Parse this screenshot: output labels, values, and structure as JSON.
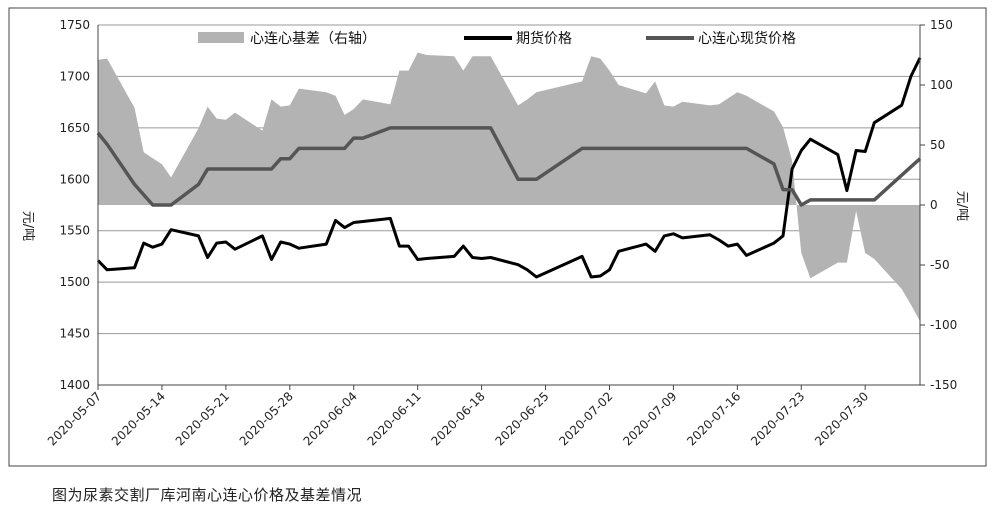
{
  "caption": "图为尿素交割厂库河南心连心价格及基差情况",
  "chart_data": {
    "type": "line",
    "left_axis": {
      "label": "元/吨",
      "min": 1400,
      "max": 1750,
      "ticks": [
        1400,
        1450,
        1500,
        1550,
        1600,
        1650,
        1700,
        1750
      ]
    },
    "right_axis": {
      "label": "元/吨",
      "min": -150,
      "max": 150,
      "ticks": [
        -150,
        -100,
        -50,
        0,
        50,
        100,
        150
      ]
    },
    "x_tick_labels": [
      "2020-05-07",
      "2020-05-14",
      "2020-05-21",
      "2020-05-28",
      "2020-06-04",
      "2020-06-11",
      "2020-06-18",
      "2020-06-25",
      "2020-07-02",
      "2020-07-09",
      "2020-07-16",
      "2020-07-23",
      "2020-07-30"
    ],
    "x_range": [
      "2020-05-07",
      "2020-08-05"
    ],
    "legend_position": "top",
    "series": [
      {
        "name": "心连心基差（右轴）",
        "type": "area",
        "axis": "right",
        "color": "#b3b3b3",
        "points": [
          [
            "2020-05-07",
            121
          ],
          [
            "2020-05-08",
            122
          ],
          [
            "2020-05-11",
            81
          ],
          [
            "2020-05-12",
            44
          ],
          [
            "2020-05-13",
            39
          ],
          [
            "2020-05-14",
            34
          ],
          [
            "2020-05-15",
            23
          ],
          [
            "2020-05-18",
            64
          ],
          [
            "2020-05-19",
            82
          ],
          [
            "2020-05-20",
            72
          ],
          [
            "2020-05-21",
            71
          ],
          [
            "2020-05-22",
            77
          ],
          [
            "2020-05-25",
            62
          ],
          [
            "2020-05-26",
            88
          ],
          [
            "2020-05-27",
            82
          ],
          [
            "2020-05-28",
            83
          ],
          [
            "2020-05-29",
            97
          ],
          [
            "2020-06-01",
            94
          ],
          [
            "2020-06-02",
            91
          ],
          [
            "2020-06-03",
            75
          ],
          [
            "2020-06-04",
            80
          ],
          [
            "2020-06-05",
            88
          ],
          [
            "2020-06-08",
            84
          ],
          [
            "2020-06-09",
            112
          ],
          [
            "2020-06-10",
            112
          ],
          [
            "2020-06-11",
            127
          ],
          [
            "2020-06-12",
            125
          ],
          [
            "2020-06-15",
            124
          ],
          [
            "2020-06-16",
            112
          ],
          [
            "2020-06-17",
            124
          ],
          [
            "2020-06-18",
            124
          ],
          [
            "2020-06-19",
            124
          ],
          [
            "2020-06-22",
            83
          ],
          [
            "2020-06-23",
            88
          ],
          [
            "2020-06-24",
            94
          ],
          [
            "2020-06-29",
            103
          ],
          [
            "2020-06-30",
            124
          ],
          [
            "2020-07-01",
            122
          ],
          [
            "2020-07-02",
            112
          ],
          [
            "2020-07-03",
            100
          ],
          [
            "2020-07-06",
            93
          ],
          [
            "2020-07-07",
            103
          ],
          [
            "2020-07-08",
            83
          ],
          [
            "2020-07-09",
            82
          ],
          [
            "2020-07-10",
            86
          ],
          [
            "2020-07-13",
            83
          ],
          [
            "2020-07-14",
            84
          ],
          [
            "2020-07-15",
            89
          ],
          [
            "2020-07-16",
            94
          ],
          [
            "2020-07-17",
            91
          ],
          [
            "2020-07-20",
            78
          ],
          [
            "2020-07-21",
            65
          ],
          [
            "2020-07-22",
            37
          ],
          [
            "2020-07-23",
            -40
          ],
          [
            "2020-07-24",
            -61
          ],
          [
            "2020-07-27",
            -48
          ],
          [
            "2020-07-28",
            -48
          ],
          [
            "2020-07-29",
            -5
          ],
          [
            "2020-07-30",
            -40
          ],
          [
            "2020-07-31",
            -45
          ],
          [
            "2020-08-03",
            -70
          ],
          [
            "2020-08-04",
            -83
          ],
          [
            "2020-08-05",
            -97
          ]
        ]
      },
      {
        "name": "期货价格",
        "type": "line",
        "axis": "left",
        "color": "#000000",
        "points": [
          [
            "2020-05-07",
            1521
          ],
          [
            "2020-05-08",
            1512
          ],
          [
            "2020-05-11",
            1514
          ],
          [
            "2020-05-12",
            1538
          ],
          [
            "2020-05-13",
            1534
          ],
          [
            "2020-05-14",
            1537
          ],
          [
            "2020-05-15",
            1551
          ],
          [
            "2020-05-18",
            1545
          ],
          [
            "2020-05-19",
            1524
          ],
          [
            "2020-05-20",
            1538
          ],
          [
            "2020-05-21",
            1539
          ],
          [
            "2020-05-22",
            1532
          ],
          [
            "2020-05-25",
            1545
          ],
          [
            "2020-05-26",
            1522
          ],
          [
            "2020-05-27",
            1539
          ],
          [
            "2020-05-28",
            1537
          ],
          [
            "2020-05-29",
            1533
          ],
          [
            "2020-06-01",
            1537
          ],
          [
            "2020-06-02",
            1560
          ],
          [
            "2020-06-03",
            1553
          ],
          [
            "2020-06-04",
            1558
          ],
          [
            "2020-06-05",
            1559
          ],
          [
            "2020-06-08",
            1562
          ],
          [
            "2020-06-09",
            1535
          ],
          [
            "2020-06-10",
            1535
          ],
          [
            "2020-06-11",
            1522
          ],
          [
            "2020-06-12",
            1523
          ],
          [
            "2020-06-15",
            1525
          ],
          [
            "2020-06-16",
            1535
          ],
          [
            "2020-06-17",
            1524
          ],
          [
            "2020-06-18",
            1523
          ],
          [
            "2020-06-19",
            1524
          ],
          [
            "2020-06-22",
            1517
          ],
          [
            "2020-06-23",
            1512
          ],
          [
            "2020-06-24",
            1505
          ],
          [
            "2020-06-29",
            1525
          ],
          [
            "2020-06-30",
            1505
          ],
          [
            "2020-07-01",
            1506
          ],
          [
            "2020-07-02",
            1512
          ],
          [
            "2020-07-03",
            1530
          ],
          [
            "2020-07-06",
            1537
          ],
          [
            "2020-07-07",
            1530
          ],
          [
            "2020-07-08",
            1545
          ],
          [
            "2020-07-09",
            1547
          ],
          [
            "2020-07-10",
            1543
          ],
          [
            "2020-07-13",
            1546
          ],
          [
            "2020-07-14",
            1541
          ],
          [
            "2020-07-15",
            1535
          ],
          [
            "2020-07-16",
            1537
          ],
          [
            "2020-07-17",
            1526
          ],
          [
            "2020-07-20",
            1538
          ],
          [
            "2020-07-21",
            1545
          ],
          [
            "2020-07-22",
            1610
          ],
          [
            "2020-07-23",
            1628
          ],
          [
            "2020-07-24",
            1639
          ],
          [
            "2020-07-27",
            1624
          ],
          [
            "2020-07-28",
            1589
          ],
          [
            "2020-07-29",
            1628
          ],
          [
            "2020-07-30",
            1627
          ],
          [
            "2020-07-31",
            1655
          ],
          [
            "2020-08-03",
            1672
          ],
          [
            "2020-08-04",
            1700
          ],
          [
            "2020-08-05",
            1718
          ]
        ]
      },
      {
        "name": "心连心现货价格",
        "type": "line",
        "axis": "left",
        "color": "#555555",
        "points": [
          [
            "2020-05-07",
            1645
          ],
          [
            "2020-05-08",
            1634
          ],
          [
            "2020-05-11",
            1595
          ],
          [
            "2020-05-13",
            1575
          ],
          [
            "2020-05-15",
            1575
          ],
          [
            "2020-05-18",
            1595
          ],
          [
            "2020-05-19",
            1610
          ],
          [
            "2020-05-26",
            1610
          ],
          [
            "2020-05-27",
            1620
          ],
          [
            "2020-05-28",
            1620
          ],
          [
            "2020-05-29",
            1630
          ],
          [
            "2020-06-03",
            1630
          ],
          [
            "2020-06-04",
            1640
          ],
          [
            "2020-06-05",
            1640
          ],
          [
            "2020-06-08",
            1650
          ],
          [
            "2020-06-19",
            1650
          ],
          [
            "2020-06-22",
            1600
          ],
          [
            "2020-06-24",
            1600
          ],
          [
            "2020-06-29",
            1630
          ],
          [
            "2020-07-17",
            1630
          ],
          [
            "2020-07-20",
            1615
          ],
          [
            "2020-07-21",
            1590
          ],
          [
            "2020-07-22",
            1590
          ],
          [
            "2020-07-23",
            1575
          ],
          [
            "2020-07-24",
            1580
          ],
          [
            "2020-07-29",
            1580
          ],
          [
            "2020-07-31",
            1580
          ],
          [
            "2020-08-05",
            1620
          ]
        ]
      }
    ]
  }
}
